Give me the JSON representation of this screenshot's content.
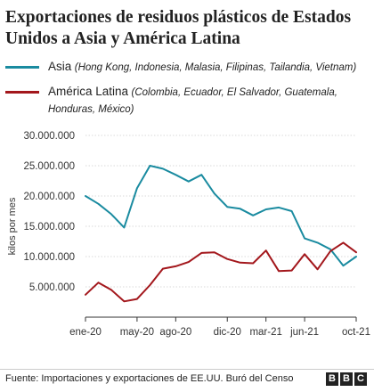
{
  "title": "Exportaciones de residuos plásticos de Estados Unidos a Asia y América Latina",
  "legend": [
    {
      "name": "Asia",
      "desc": "(Hong Kong, Indonesia, Malasia, Filipinas, Tailandia, Vietnam)",
      "color": "#1a8ba0"
    },
    {
      "name": "América Latina",
      "desc": "(Colombia, Ecuador, El Salvador, Guatemala, Honduras, México)",
      "color": "#a3171c"
    }
  ],
  "source": "Fuente: Importaciones y exportaciones de EE.UU. Buró del Censo",
  "logo": [
    "B",
    "B",
    "C"
  ],
  "chart_data": {
    "type": "line",
    "ylabel": "kilos por mes",
    "xlabel": "",
    "ylim": [
      0,
      30000000
    ],
    "yticks": [
      5000000,
      10000000,
      15000000,
      20000000,
      25000000,
      30000000
    ],
    "ytick_labels": [
      "5.000.000",
      "10.000.000",
      "15.000.000",
      "20.000.000",
      "25.000.000",
      "30.000.000"
    ],
    "x": [
      "ene-20",
      "feb-20",
      "mar-20",
      "abr-20",
      "may-20",
      "jun-20",
      "jul-20",
      "ago-20",
      "sep-20",
      "oct-20",
      "nov-20",
      "dic-20",
      "ene-21",
      "feb-21",
      "mar-21",
      "abr-21",
      "may-21",
      "jun-21",
      "jul-21",
      "ago-21",
      "sep-21",
      "oct-21"
    ],
    "xtick_labels": [
      "ene-20",
      "may-20",
      "ago-20",
      "dic-20",
      "mar-21",
      "jun-21",
      "oct-21"
    ],
    "xtick_index": [
      0,
      4,
      7,
      11,
      14,
      17,
      21
    ],
    "grid": "horizontal",
    "series": [
      {
        "name": "Asia",
        "color": "#1a8ba0",
        "values": [
          20000000,
          18700000,
          17000000,
          14800000,
          21300000,
          25000000,
          24500000,
          23500000,
          22400000,
          23500000,
          20400000,
          18200000,
          17900000,
          16800000,
          17800000,
          18100000,
          17500000,
          13000000,
          12300000,
          11200000,
          8500000,
          10000000
        ]
      },
      {
        "name": "América Latina",
        "color": "#a3171c",
        "values": [
          3700000,
          5700000,
          4500000,
          2600000,
          3000000,
          5300000,
          8000000,
          8400000,
          9100000,
          10600000,
          10700000,
          9600000,
          9000000,
          8900000,
          11000000,
          7600000,
          7700000,
          10400000,
          7900000,
          10900000,
          12300000,
          10700000
        ]
      }
    ]
  }
}
